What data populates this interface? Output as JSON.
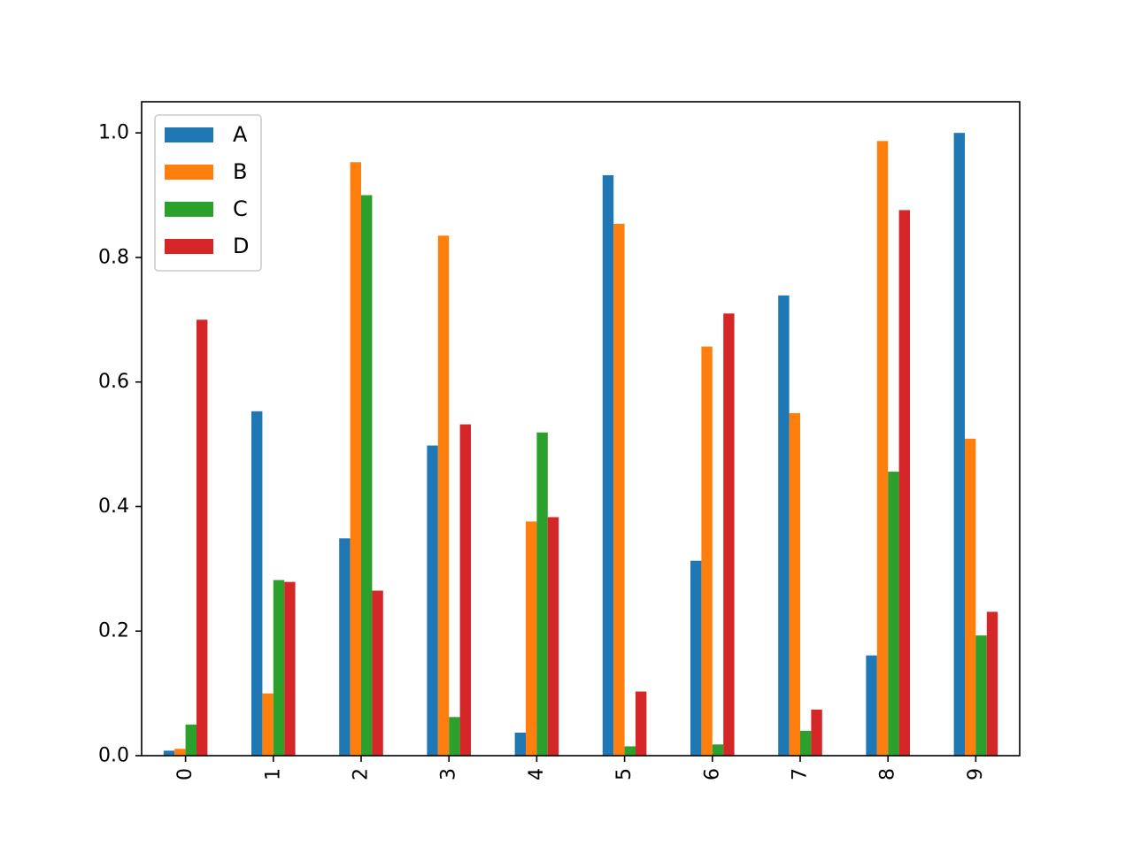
{
  "chart_data": {
    "type": "bar",
    "title": "",
    "xlabel": "",
    "ylabel": "",
    "categories": [
      "0",
      "1",
      "2",
      "3",
      "4",
      "5",
      "6",
      "7",
      "8",
      "9"
    ],
    "series": [
      {
        "name": "A",
        "color": "#1f77b4",
        "values": [
          0.008,
          0.553,
          0.349,
          0.498,
          0.037,
          0.932,
          0.313,
          0.739,
          0.161,
          1.0
        ]
      },
      {
        "name": "B",
        "color": "#ff7f0e",
        "values": [
          0.011,
          0.1,
          0.953,
          0.835,
          0.376,
          0.854,
          0.657,
          0.55,
          0.987,
          0.509
        ]
      },
      {
        "name": "C",
        "color": "#2ca02c",
        "values": [
          0.05,
          0.282,
          0.9,
          0.062,
          0.519,
          0.015,
          0.018,
          0.04,
          0.456,
          0.193
        ]
      },
      {
        "name": "D",
        "color": "#d62728",
        "values": [
          0.7,
          0.279,
          0.265,
          0.532,
          0.383,
          0.103,
          0.71,
          0.074,
          0.876,
          0.231
        ]
      }
    ],
    "ylim": [
      0,
      1.05
    ],
    "yticks": [
      0.0,
      0.2,
      0.4,
      0.6,
      0.8,
      1.0
    ],
    "ytick_labels": [
      "0.0",
      "0.2",
      "0.4",
      "0.6",
      "0.8",
      "1.0"
    ],
    "xtick_rotation": "vertical",
    "grid": false,
    "legend_position": "upper-left"
  }
}
